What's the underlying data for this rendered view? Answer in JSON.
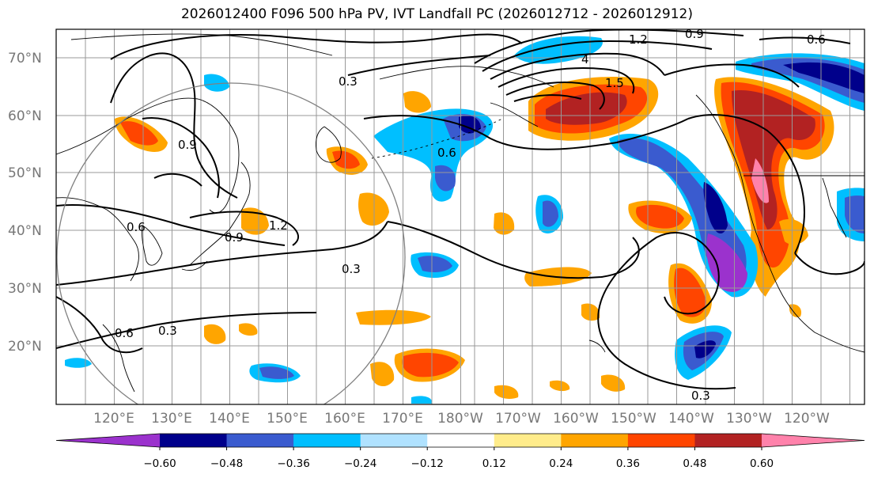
{
  "title": "2026012400 F096 500 hPa PV, IVT Landfall PC (2026012712 - 2026012912)",
  "axes": {
    "lat_ticks": [
      "70°N",
      "60°N",
      "50°N",
      "40°N",
      "30°N",
      "20°N"
    ],
    "lon_ticks": [
      "120°E",
      "130°E",
      "140°E",
      "150°E",
      "160°E",
      "170°E",
      "180°W",
      "170°W",
      "160°W",
      "150°W",
      "140°W",
      "130°W",
      "120°W"
    ]
  },
  "colorbar": {
    "colors": [
      "#9b32cd",
      "#00008b",
      "#3a5bcf",
      "#00bfff",
      "#b0e2ff",
      "#ffffff",
      "#ffec8b",
      "#ffa500",
      "#ff4500",
      "#b22222",
      "#ff82ab"
    ],
    "ticks": [
      "−0.60",
      "−0.48",
      "−0.36",
      "−0.24",
      "−0.12",
      "0.12",
      "0.24",
      "0.36",
      "0.48",
      "0.60"
    ]
  },
  "contour_labels": [
    "0.3",
    "0.6",
    "0.9",
    "1.2",
    "1.5",
    "4"
  ],
  "legend_colors": {
    "contour": "#000000",
    "grid": "#999999",
    "circle": "#808080",
    "tick_text": "#777777"
  }
}
